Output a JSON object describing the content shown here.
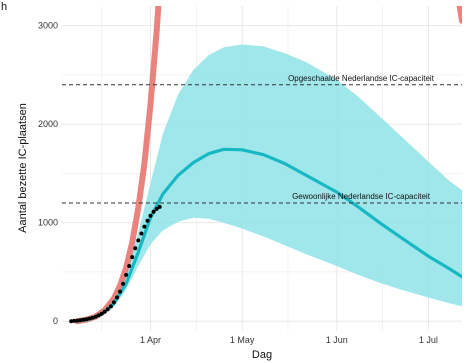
{
  "chart_data": {
    "type": "line",
    "corner_label": "h",
    "xlabel": "Dag",
    "ylabel": "Aantal bezette IC-plaatsen",
    "x_range": [
      "2020-03-03",
      "2020-07-12"
    ],
    "ylim": [
      -100,
      3200
    ],
    "x_ticks": [
      {
        "date": "2020-04-01",
        "label": "1 Apr"
      },
      {
        "date": "2020-05-01",
        "label": "1 May"
      },
      {
        "date": "2020-06-01",
        "label": "1 Jun"
      },
      {
        "date": "2020-07-01",
        "label": "1 Jul"
      }
    ],
    "y_ticks": [
      0,
      1000,
      2000,
      3000
    ],
    "grid": true,
    "colors": {
      "red_curve": "#e8756f",
      "prediction": "#17b8c4",
      "band": "#8ee3e6",
      "observed": "#000000",
      "grid": "#e6e6e6",
      "panel": "#ffffff",
      "reference": "#333333"
    },
    "reference_lines": [
      {
        "value": 2400,
        "label": "Opgeschaalde Nederlandse IC-capaciteit"
      },
      {
        "value": 1200,
        "label": "Gewoonlijke Nederlandse IC-capaciteit"
      }
    ],
    "series": [
      {
        "kind": "red_curve",
        "points": [
          [
            "2020-03-08",
            0
          ],
          [
            "2020-03-11",
            15
          ],
          [
            "2020-03-14",
            45
          ],
          [
            "2020-03-17",
            110
          ],
          [
            "2020-03-20",
            230
          ],
          [
            "2020-03-22",
            360
          ],
          [
            "2020-03-24",
            540
          ],
          [
            "2020-03-26",
            800
          ],
          [
            "2020-03-28",
            1150
          ],
          [
            "2020-03-30",
            1600
          ],
          [
            "2020-04-01",
            2200
          ],
          [
            "2020-04-03",
            2950
          ],
          [
            "2020-04-04",
            3400
          ]
        ]
      },
      {
        "kind": "red_curve",
        "points": [
          [
            "2020-07-10",
            3450
          ],
          [
            "2020-07-12",
            3050
          ]
        ]
      },
      {
        "kind": "prediction",
        "points": [
          [
            "2020-03-08",
            0
          ],
          [
            "2020-03-12",
            20
          ],
          [
            "2020-03-16",
            70
          ],
          [
            "2020-03-20",
            180
          ],
          [
            "2020-03-24",
            380
          ],
          [
            "2020-03-28",
            700
          ],
          [
            "2020-04-01",
            1050
          ],
          [
            "2020-04-05",
            1290
          ],
          [
            "2020-04-10",
            1480
          ],
          [
            "2020-04-15",
            1610
          ],
          [
            "2020-04-20",
            1700
          ],
          [
            "2020-04-25",
            1745
          ],
          [
            "2020-05-01",
            1740
          ],
          [
            "2020-05-08",
            1690
          ],
          [
            "2020-05-15",
            1600
          ],
          [
            "2020-05-22",
            1480
          ],
          [
            "2020-06-01",
            1310
          ],
          [
            "2020-06-08",
            1160
          ],
          [
            "2020-06-15",
            1000
          ],
          [
            "2020-06-22",
            850
          ],
          [
            "2020-07-01",
            660
          ],
          [
            "2020-07-08",
            530
          ],
          [
            "2020-07-12",
            450
          ]
        ]
      }
    ],
    "band": {
      "upper": [
        [
          "2020-03-08",
          0
        ],
        [
          "2020-03-14",
          70
        ],
        [
          "2020-03-20",
          230
        ],
        [
          "2020-03-24",
          480
        ],
        [
          "2020-03-28",
          900
        ],
        [
          "2020-04-01",
          1400
        ],
        [
          "2020-04-05",
          1900
        ],
        [
          "2020-04-10",
          2300
        ],
        [
          "2020-04-15",
          2550
        ],
        [
          "2020-04-20",
          2700
        ],
        [
          "2020-04-25",
          2780
        ],
        [
          "2020-05-01",
          2810
        ],
        [
          "2020-05-08",
          2790
        ],
        [
          "2020-05-15",
          2720
        ],
        [
          "2020-05-22",
          2630
        ],
        [
          "2020-06-01",
          2450
        ],
        [
          "2020-06-08",
          2280
        ],
        [
          "2020-06-15",
          2080
        ],
        [
          "2020-06-22",
          1880
        ],
        [
          "2020-07-01",
          1620
        ],
        [
          "2020-07-08",
          1420
        ],
        [
          "2020-07-12",
          1330
        ]
      ],
      "lower": [
        [
          "2020-03-08",
          0
        ],
        [
          "2020-03-14",
          20
        ],
        [
          "2020-03-20",
          140
        ],
        [
          "2020-03-24",
          320
        ],
        [
          "2020-03-28",
          560
        ],
        [
          "2020-04-01",
          780
        ],
        [
          "2020-04-05",
          920
        ],
        [
          "2020-04-10",
          1010
        ],
        [
          "2020-04-15",
          1050
        ],
        [
          "2020-04-20",
          1040
        ],
        [
          "2020-04-25",
          1000
        ],
        [
          "2020-05-01",
          940
        ],
        [
          "2020-05-08",
          860
        ],
        [
          "2020-05-15",
          770
        ],
        [
          "2020-05-22",
          680
        ],
        [
          "2020-06-01",
          560
        ],
        [
          "2020-06-08",
          470
        ],
        [
          "2020-06-15",
          390
        ],
        [
          "2020-06-22",
          320
        ],
        [
          "2020-07-01",
          240
        ],
        [
          "2020-07-08",
          180
        ],
        [
          "2020-07-12",
          150
        ]
      ]
    },
    "observed": [
      [
        "2020-03-06",
        0
      ],
      [
        "2020-03-07",
        3
      ],
      [
        "2020-03-08",
        6
      ],
      [
        "2020-03-09",
        10
      ],
      [
        "2020-03-10",
        15
      ],
      [
        "2020-03-11",
        20
      ],
      [
        "2020-03-12",
        27
      ],
      [
        "2020-03-13",
        35
      ],
      [
        "2020-03-14",
        45
      ],
      [
        "2020-03-15",
        58
      ],
      [
        "2020-03-16",
        75
      ],
      [
        "2020-03-17",
        95
      ],
      [
        "2020-03-18",
        120
      ],
      [
        "2020-03-19",
        150
      ],
      [
        "2020-03-20",
        190
      ],
      [
        "2020-03-21",
        240
      ],
      [
        "2020-03-22",
        300
      ],
      [
        "2020-03-23",
        380
      ],
      [
        "2020-03-24",
        470
      ],
      [
        "2020-03-25",
        560
      ],
      [
        "2020-03-26",
        650
      ],
      [
        "2020-03-27",
        740
      ],
      [
        "2020-03-28",
        820
      ],
      [
        "2020-03-29",
        890
      ],
      [
        "2020-03-30",
        960
      ],
      [
        "2020-03-31",
        1020
      ],
      [
        "2020-04-01",
        1070
      ],
      [
        "2020-04-02",
        1110
      ],
      [
        "2020-04-03",
        1140
      ],
      [
        "2020-04-04",
        1160
      ]
    ]
  }
}
